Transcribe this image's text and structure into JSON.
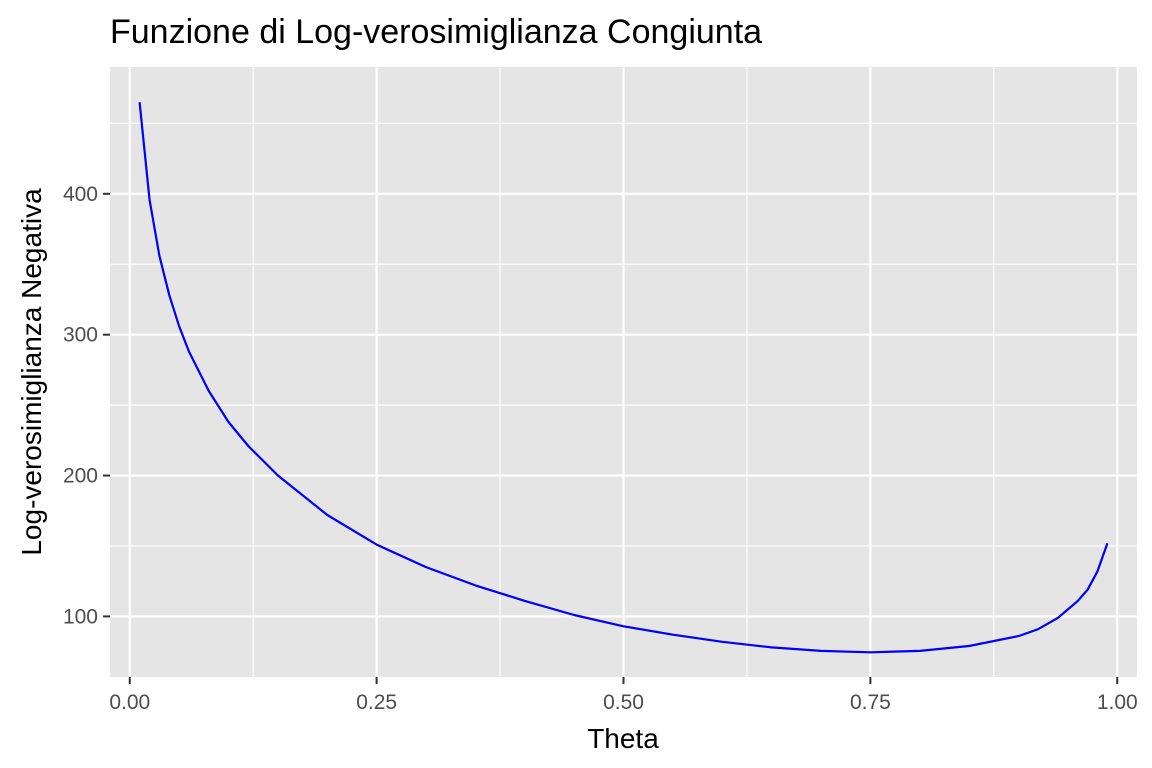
{
  "chart_data": {
    "type": "line",
    "title": "Funzione di Log-verosimiglianza Congiunta",
    "xlabel": "Theta",
    "ylabel": "Log-verosimiglianza Negativa",
    "xlim": [
      -0.02,
      1.02
    ],
    "ylim": [
      57,
      490
    ],
    "x_ticks": [
      0.0,
      0.25,
      0.5,
      0.75,
      1.0
    ],
    "x_tick_labels": [
      "0.00",
      "0.25",
      "0.50",
      "0.75",
      "1.00"
    ],
    "y_ticks": [
      100,
      200,
      300,
      400
    ],
    "y_tick_labels": [
      "100",
      "200",
      "300",
      "400"
    ],
    "grid": true,
    "legend": "none",
    "colors": {
      "panel": "#e5e5e5",
      "grid": "#ffffff",
      "line": "#0000ff",
      "tick": "#333333"
    },
    "series": [
      {
        "x": [
          0.01,
          0.02,
          0.03,
          0.04,
          0.05,
          0.06,
          0.08,
          0.1,
          0.12,
          0.15,
          0.2,
          0.25,
          0.3,
          0.35,
          0.4,
          0.45,
          0.5,
          0.55,
          0.6,
          0.65,
          0.7,
          0.75,
          0.8,
          0.85,
          0.9,
          0.92,
          0.94,
          0.95,
          0.96,
          0.97,
          0.98,
          0.99
        ],
        "y": [
          465,
          396,
          356,
          328,
          306,
          288,
          260,
          238,
          221,
          200,
          172,
          151,
          135,
          122,
          111,
          101,
          93,
          87,
          82,
          78,
          75.5,
          74.5,
          75.5,
          79,
          86,
          91,
          99,
          105,
          111,
          119,
          132,
          152
        ]
      }
    ]
  }
}
